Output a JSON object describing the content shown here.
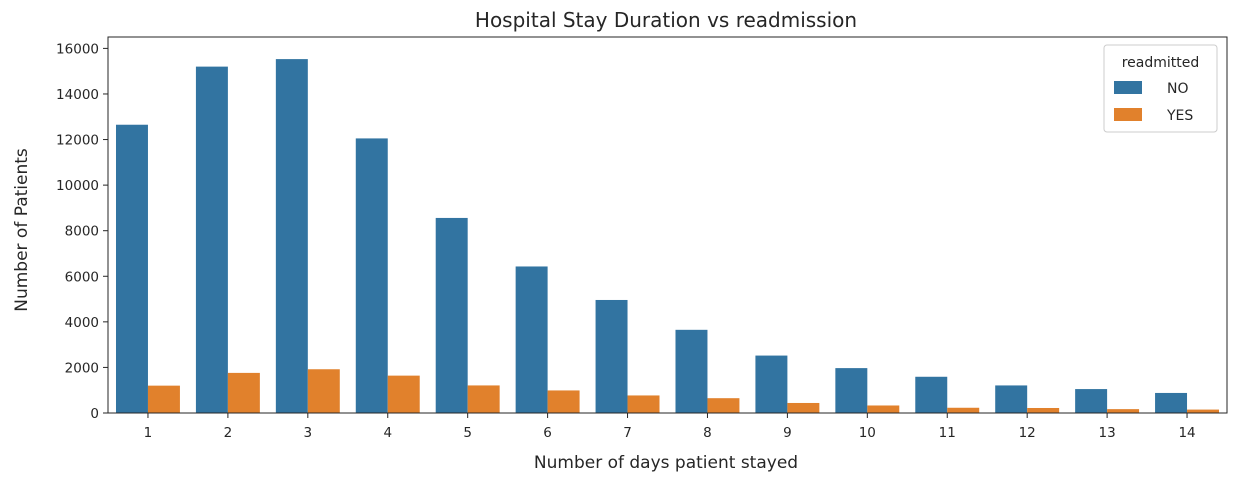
{
  "chart_data": {
    "type": "bar",
    "title": "Hospital Stay Duration vs readmission",
    "xlabel": "Number of days patient stayed",
    "ylabel": "Number of Patients",
    "categories": [
      "1",
      "2",
      "3",
      "4",
      "5",
      "6",
      "7",
      "8",
      "9",
      "10",
      "11",
      "12",
      "13",
      "14"
    ],
    "series": [
      {
        "name": "NO",
        "color": "#3274a1",
        "values": [
          12650,
          15200,
          15530,
          12050,
          8560,
          6430,
          4960,
          3650,
          2520,
          1970,
          1590,
          1210,
          1050,
          880
        ]
      },
      {
        "name": "YES",
        "color": "#e1812c",
        "values": [
          1200,
          1760,
          1920,
          1640,
          1210,
          990,
          770,
          650,
          440,
          330,
          230,
          220,
          170,
          150
        ]
      }
    ],
    "ylim": [
      0,
      16500
    ],
    "yticks": [
      "0",
      "2000",
      "4000",
      "6000",
      "8000",
      "10000",
      "12000",
      "14000",
      "16000"
    ],
    "legend": {
      "title": "readmitted",
      "position": "top-right"
    },
    "grid": false
  }
}
